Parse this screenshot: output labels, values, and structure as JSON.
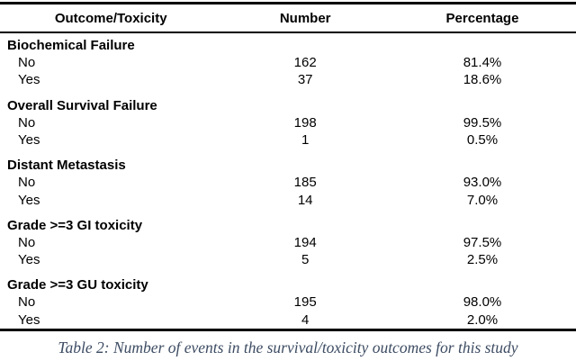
{
  "table": {
    "headers": {
      "outcome": "Outcome/Toxicity",
      "number": "Number",
      "percentage": "Percentage"
    },
    "sections": [
      {
        "label": "Biochemical Failure",
        "rows": [
          {
            "label": "No",
            "number": "162",
            "percentage": "81.4%"
          },
          {
            "label": "Yes",
            "number": "37",
            "percentage": "18.6%"
          }
        ]
      },
      {
        "label": "Overall Survival Failure",
        "rows": [
          {
            "label": "No",
            "number": "198",
            "percentage": "99.5%"
          },
          {
            "label": "Yes",
            "number": "1",
            "percentage": "0.5%"
          }
        ]
      },
      {
        "label": "Distant Metastasis",
        "rows": [
          {
            "label": "No",
            "number": "185",
            "percentage": "93.0%"
          },
          {
            "label": "Yes",
            "number": "14",
            "percentage": "7.0%"
          }
        ]
      },
      {
        "label": "Grade >=3 GI toxicity",
        "rows": [
          {
            "label": "No",
            "number": "194",
            "percentage": "97.5%"
          },
          {
            "label": "Yes",
            "number": "5",
            "percentage": "2.5%"
          }
        ]
      },
      {
        "label": "Grade >=3 GU toxicity",
        "rows": [
          {
            "label": "No",
            "number": "195",
            "percentage": "98.0%"
          },
          {
            "label": "Yes",
            "number": "4",
            "percentage": "2.0%"
          }
        ]
      }
    ]
  },
  "caption": "Table 2: Number of events in the survival/toxicity outcomes for this study",
  "colors": {
    "background": "#ffffff",
    "text": "#000000",
    "border": "#000000",
    "caption_text": "#3d4c63"
  }
}
